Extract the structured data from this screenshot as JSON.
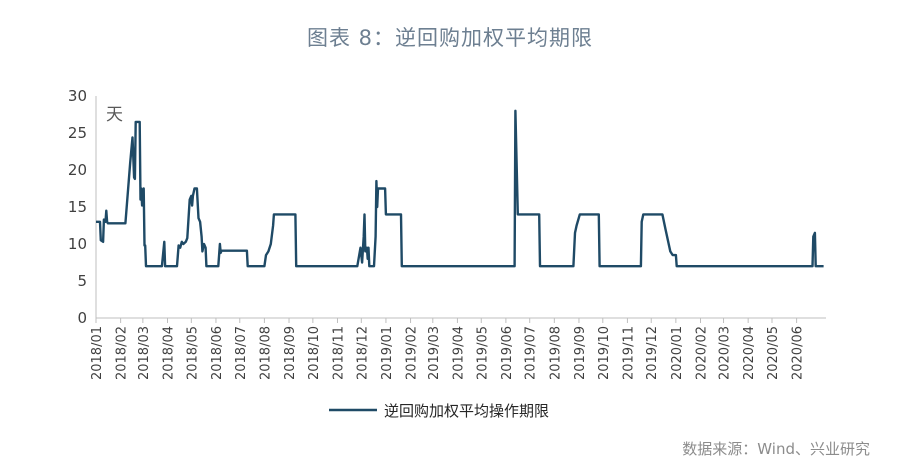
{
  "title": "图表 8：逆回购加权平均期限",
  "source": "数据来源：Wind、兴业研究",
  "chart_data": {
    "type": "line",
    "unit_label": "天",
    "ylim": [
      0,
      30
    ],
    "yticks": [
      0,
      5,
      10,
      15,
      20,
      25,
      30
    ],
    "xlim": [
      "2018-01-01",
      "2020-07-08"
    ],
    "xtick_labels": [
      "2018/01",
      "2018/02",
      "2018/03",
      "2018/04",
      "2018/05",
      "2018/06",
      "2018/07",
      "2018/08",
      "2018/09",
      "2018/10",
      "2018/11",
      "2018/12",
      "2019/01",
      "2019/02",
      "2019/03",
      "2019/04",
      "2019/05",
      "2019/06",
      "2019/07",
      "2019/08",
      "2019/09",
      "2019/10",
      "2019/11",
      "2019/12",
      "2020/01",
      "2020/02",
      "2020/03",
      "2020/04",
      "2020/05",
      "2020/06"
    ],
    "grid": false,
    "legend_position": "bottom",
    "color": "#1f4a66",
    "series": [
      {
        "name": "逆回购加权平均操作期限",
        "points": [
          [
            "2018-01-01",
            13
          ],
          [
            "2018-01-06",
            13
          ],
          [
            "2018-01-07",
            10.5
          ],
          [
            "2018-01-10",
            10.3
          ],
          [
            "2018-01-11",
            13.3
          ],
          [
            "2018-01-13",
            13
          ],
          [
            "2018-01-14",
            14.5
          ],
          [
            "2018-01-15",
            13
          ],
          [
            "2018-01-16",
            12.8
          ],
          [
            "2018-01-31",
            12.8
          ],
          [
            "2018-02-07",
            12.8
          ],
          [
            "2018-02-13",
            21
          ],
          [
            "2018-02-16",
            24.4
          ],
          [
            "2018-02-18",
            19
          ],
          [
            "2018-02-19",
            18.8
          ],
          [
            "2018-02-20",
            26.5
          ],
          [
            "2018-02-23",
            26.5
          ],
          [
            "2018-02-25",
            26.5
          ],
          [
            "2018-02-26",
            16
          ],
          [
            "2018-02-27",
            17.5
          ],
          [
            "2018-02-28",
            15.2
          ],
          [
            "2018-03-02",
            17.5
          ],
          [
            "2018-03-03",
            9.8
          ],
          [
            "2018-03-04",
            9.8
          ],
          [
            "2018-03-05",
            7
          ],
          [
            "2018-03-25",
            7
          ],
          [
            "2018-03-28",
            10.3
          ],
          [
            "2018-03-29",
            7
          ],
          [
            "2018-04-13",
            7
          ],
          [
            "2018-04-15",
            9.8
          ],
          [
            "2018-04-17",
            9.5
          ],
          [
            "2018-04-19",
            10.3
          ],
          [
            "2018-04-21",
            10
          ],
          [
            "2018-04-24",
            10.3
          ],
          [
            "2018-04-26",
            10.8
          ],
          [
            "2018-04-29",
            16
          ],
          [
            "2018-05-01",
            16.5
          ],
          [
            "2018-05-02",
            15.2
          ],
          [
            "2018-05-03",
            16.5
          ],
          [
            "2018-05-05",
            17.5
          ],
          [
            "2018-05-08",
            17.5
          ],
          [
            "2018-05-10",
            13.5
          ],
          [
            "2018-05-12",
            13
          ],
          [
            "2018-05-14",
            11
          ],
          [
            "2018-05-15",
            9
          ],
          [
            "2018-05-17",
            10
          ],
          [
            "2018-05-19",
            9.5
          ],
          [
            "2018-05-20",
            7
          ],
          [
            "2018-06-04",
            7
          ],
          [
            "2018-06-06",
            10
          ],
          [
            "2018-06-07",
            8.8
          ],
          [
            "2018-06-08",
            9.1
          ],
          [
            "2018-07-10",
            9.1
          ],
          [
            "2018-07-11",
            7
          ],
          [
            "2018-08-01",
            7
          ],
          [
            "2018-08-03",
            8.5
          ],
          [
            "2018-08-06",
            9
          ],
          [
            "2018-08-09",
            10
          ],
          [
            "2018-08-12",
            12.5
          ],
          [
            "2018-08-13",
            14
          ],
          [
            "2018-08-20",
            14
          ],
          [
            "2018-09-09",
            14
          ],
          [
            "2018-09-10",
            7
          ],
          [
            "2018-09-24",
            7
          ],
          [
            "2018-10-15",
            7
          ],
          [
            "2018-11-26",
            7
          ],
          [
            "2018-11-30",
            9.5
          ],
          [
            "2018-12-02",
            7.5
          ],
          [
            "2018-12-04",
            11
          ],
          [
            "2018-12-05",
            14
          ],
          [
            "2018-12-06",
            9
          ],
          [
            "2018-12-08",
            9.5
          ],
          [
            "2018-12-09",
            8
          ],
          [
            "2018-12-10",
            9.5
          ],
          [
            "2018-12-11",
            7
          ],
          [
            "2018-12-17",
            7
          ],
          [
            "2018-12-19",
            11
          ],
          [
            "2018-12-20",
            18.5
          ],
          [
            "2018-12-21",
            15
          ],
          [
            "2018-12-22",
            17.5
          ],
          [
            "2018-12-31",
            17.5
          ],
          [
            "2019-01-01",
            14
          ],
          [
            "2019-01-20",
            14
          ],
          [
            "2019-01-21",
            7
          ],
          [
            "2019-02-15",
            7
          ],
          [
            "2019-03-15",
            7
          ],
          [
            "2019-05-01",
            7
          ],
          [
            "2019-05-31",
            7
          ],
          [
            "2019-06-12",
            7
          ],
          [
            "2019-06-13",
            28
          ],
          [
            "2019-06-16",
            14
          ],
          [
            "2019-06-20",
            14
          ],
          [
            "2019-07-13",
            14
          ],
          [
            "2019-07-14",
            7
          ],
          [
            "2019-07-31",
            7
          ],
          [
            "2019-08-01",
            7
          ],
          [
            "2019-08-25",
            7
          ],
          [
            "2019-08-27",
            11.5
          ],
          [
            "2019-08-29",
            12.5
          ],
          [
            "2019-09-02",
            14
          ],
          [
            "2019-09-04",
            14
          ],
          [
            "2019-09-26",
            14
          ],
          [
            "2019-09-27",
            7
          ],
          [
            "2019-10-15",
            7
          ],
          [
            "2019-11-15",
            7
          ],
          [
            "2019-11-18",
            7
          ],
          [
            "2019-11-19",
            13
          ],
          [
            "2019-11-21",
            14
          ],
          [
            "2019-12-10",
            14
          ],
          [
            "2019-12-15",
            14
          ],
          [
            "2019-12-19",
            12
          ],
          [
            "2019-12-25",
            9
          ],
          [
            "2019-12-28",
            8.5
          ],
          [
            "2020-01-01",
            8.5
          ],
          [
            "2020-01-02",
            7
          ],
          [
            "2020-01-15",
            7
          ],
          [
            "2020-02-15",
            7
          ],
          [
            "2020-03-15",
            7
          ],
          [
            "2020-04-15",
            7
          ],
          [
            "2020-05-15",
            7
          ],
          [
            "2020-06-15",
            7
          ],
          [
            "2020-06-21",
            7
          ],
          [
            "2020-06-22",
            11
          ],
          [
            "2020-06-24",
            11.5
          ],
          [
            "2020-06-25",
            7
          ],
          [
            "2020-07-05",
            7
          ]
        ]
      }
    ]
  }
}
